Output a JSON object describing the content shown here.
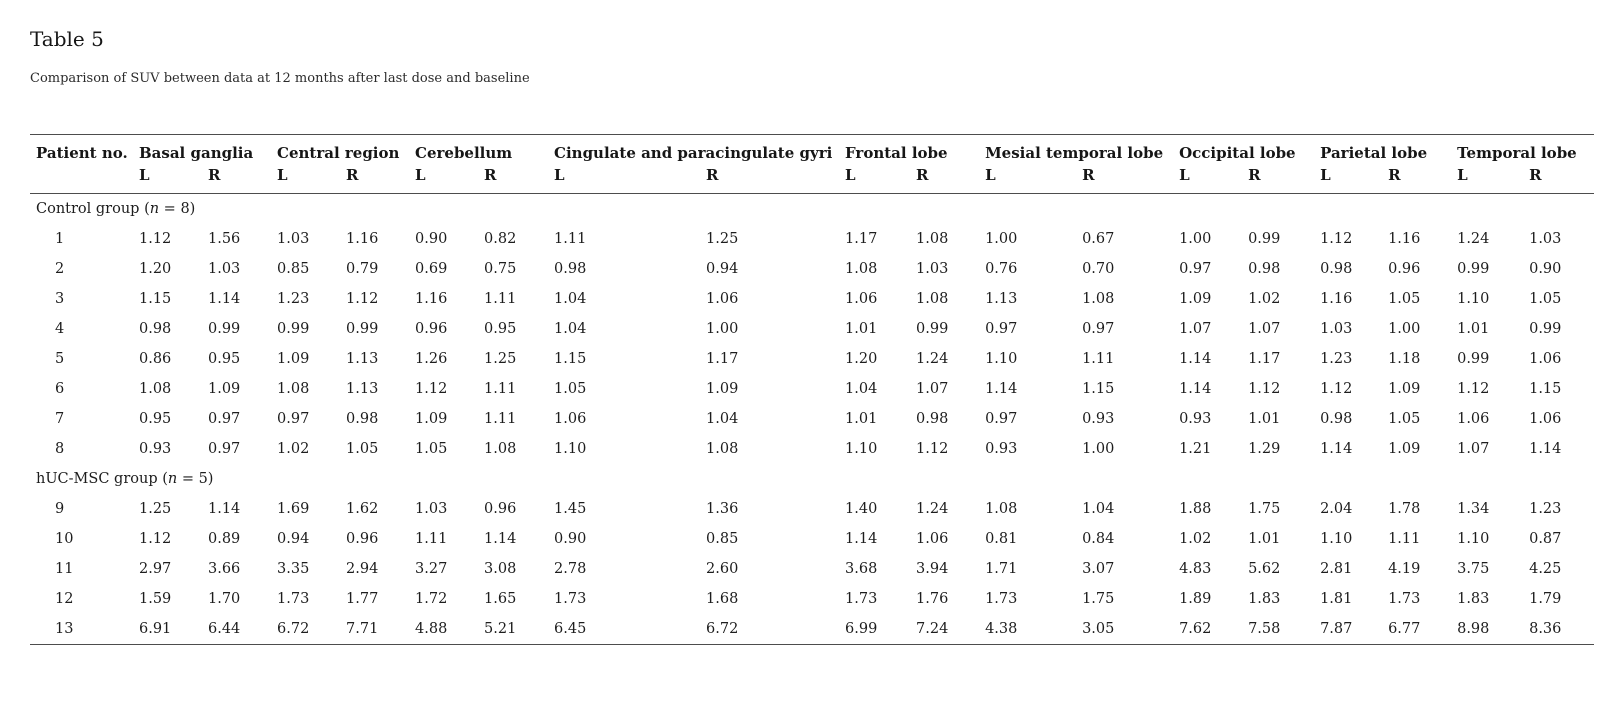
{
  "page": {
    "title": "Table 5",
    "caption": "Comparison of SUV between data at 12 months after last dose and baseline"
  },
  "table": {
    "patient_header": "Patient no.",
    "regions": [
      {
        "label": "Basal ganglia",
        "sides": [
          "L",
          "R"
        ]
      },
      {
        "label": "Central region",
        "sides": [
          "L",
          "R"
        ]
      },
      {
        "label": "Cerebellum",
        "sides": [
          "L",
          "R"
        ]
      },
      {
        "label": "Cingulate and paracingulate gyri",
        "sides": [
          "L",
          "R"
        ]
      },
      {
        "label": "Frontal lobe",
        "sides": [
          "L",
          "R"
        ]
      },
      {
        "label": "Mesial temporal lobe",
        "sides": [
          "L",
          "R"
        ]
      },
      {
        "label": "Occipital lobe",
        "sides": [
          "L",
          "R"
        ]
      },
      {
        "label": "Parietal lobe",
        "sides": [
          "L",
          "R"
        ]
      },
      {
        "label": "Temporal lobe",
        "sides": [
          "L",
          "R"
        ]
      }
    ],
    "groups": [
      {
        "label_prefix": "Control group (",
        "label_italic": "n",
        "label_suffix": " = 8)",
        "rows": [
          {
            "patient": "1",
            "values": [
              "1.12",
              "1.56",
              "1.03",
              "1.16",
              "0.90",
              "0.82",
              "1.11",
              "1.25",
              "1.17",
              "1.08",
              "1.00",
              "0.67",
              "1.00",
              "0.99",
              "1.12",
              "1.16",
              "1.24",
              "1.03"
            ]
          },
          {
            "patient": "2",
            "values": [
              "1.20",
              "1.03",
              "0.85",
              "0.79",
              "0.69",
              "0.75",
              "0.98",
              "0.94",
              "1.08",
              "1.03",
              "0.76",
              "0.70",
              "0.97",
              "0.98",
              "0.98",
              "0.96",
              "0.99",
              "0.90"
            ]
          },
          {
            "patient": "3",
            "values": [
              "1.15",
              "1.14",
              "1.23",
              "1.12",
              "1.16",
              "1.11",
              "1.04",
              "1.06",
              "1.06",
              "1.08",
              "1.13",
              "1.08",
              "1.09",
              "1.02",
              "1.16",
              "1.05",
              "1.10",
              "1.05"
            ]
          },
          {
            "patient": "4",
            "values": [
              "0.98",
              "0.99",
              "0.99",
              "0.99",
              "0.96",
              "0.95",
              "1.04",
              "1.00",
              "1.01",
              "0.99",
              "0.97",
              "0.97",
              "1.07",
              "1.07",
              "1.03",
              "1.00",
              "1.01",
              "0.99"
            ]
          },
          {
            "patient": "5",
            "values": [
              "0.86",
              "0.95",
              "1.09",
              "1.13",
              "1.26",
              "1.25",
              "1.15",
              "1.17",
              "1.20",
              "1.24",
              "1.10",
              "1.11",
              "1.14",
              "1.17",
              "1.23",
              "1.18",
              "0.99",
              "1.06"
            ]
          },
          {
            "patient": "6",
            "values": [
              "1.08",
              "1.09",
              "1.08",
              "1.13",
              "1.12",
              "1.11",
              "1.05",
              "1.09",
              "1.04",
              "1.07",
              "1.14",
              "1.15",
              "1.14",
              "1.12",
              "1.12",
              "1.09",
              "1.12",
              "1.15"
            ]
          },
          {
            "patient": "7",
            "values": [
              "0.95",
              "0.97",
              "0.97",
              "0.98",
              "1.09",
              "1.11",
              "1.06",
              "1.04",
              "1.01",
              "0.98",
              "0.97",
              "0.93",
              "0.93",
              "1.01",
              "0.98",
              "1.05",
              "1.06",
              "1.06"
            ]
          },
          {
            "patient": "8",
            "values": [
              "0.93",
              "0.97",
              "1.02",
              "1.05",
              "1.05",
              "1.08",
              "1.10",
              "1.08",
              "1.10",
              "1.12",
              "0.93",
              "1.00",
              "1.21",
              "1.29",
              "1.14",
              "1.09",
              "1.07",
              "1.14"
            ]
          }
        ]
      },
      {
        "label_prefix": "hUC-MSC group (",
        "label_italic": "n",
        "label_suffix": " = 5)",
        "rows": [
          {
            "patient": "9",
            "values": [
              "1.25",
              "1.14",
              "1.69",
              "1.62",
              "1.03",
              "0.96",
              "1.45",
              "1.36",
              "1.40",
              "1.24",
              "1.08",
              "1.04",
              "1.88",
              "1.75",
              "2.04",
              "1.78",
              "1.34",
              "1.23"
            ]
          },
          {
            "patient": "10",
            "values": [
              "1.12",
              "0.89",
              "0.94",
              "0.96",
              "1.11",
              "1.14",
              "0.90",
              "0.85",
              "1.14",
              "1.06",
              "0.81",
              "0.84",
              "1.02",
              "1.01",
              "1.10",
              "1.11",
              "1.10",
              "0.87"
            ]
          },
          {
            "patient": "11",
            "values": [
              "2.97",
              "3.66",
              "3.35",
              "2.94",
              "3.27",
              "3.08",
              "2.78",
              "2.60",
              "3.68",
              "3.94",
              "1.71",
              "3.07",
              "4.83",
              "5.62",
              "2.81",
              "4.19",
              "3.75",
              "4.25"
            ]
          },
          {
            "patient": "12",
            "values": [
              "1.59",
              "1.70",
              "1.73",
              "1.77",
              "1.72",
              "1.65",
              "1.73",
              "1.68",
              "1.73",
              "1.76",
              "1.73",
              "1.75",
              "1.89",
              "1.83",
              "1.81",
              "1.73",
              "1.83",
              "1.79"
            ]
          },
          {
            "patient": "13",
            "values": [
              "6.91",
              "6.44",
              "6.72",
              "7.71",
              "4.88",
              "5.21",
              "6.45",
              "6.72",
              "6.99",
              "7.24",
              "4.38",
              "3.05",
              "7.62",
              "7.58",
              "7.87",
              "6.77",
              "8.98",
              "8.36"
            ]
          }
        ]
      }
    ],
    "colors": {
      "rule": "#4d4d4d",
      "text": "#1d1d1d",
      "background": "#ffffff"
    }
  }
}
